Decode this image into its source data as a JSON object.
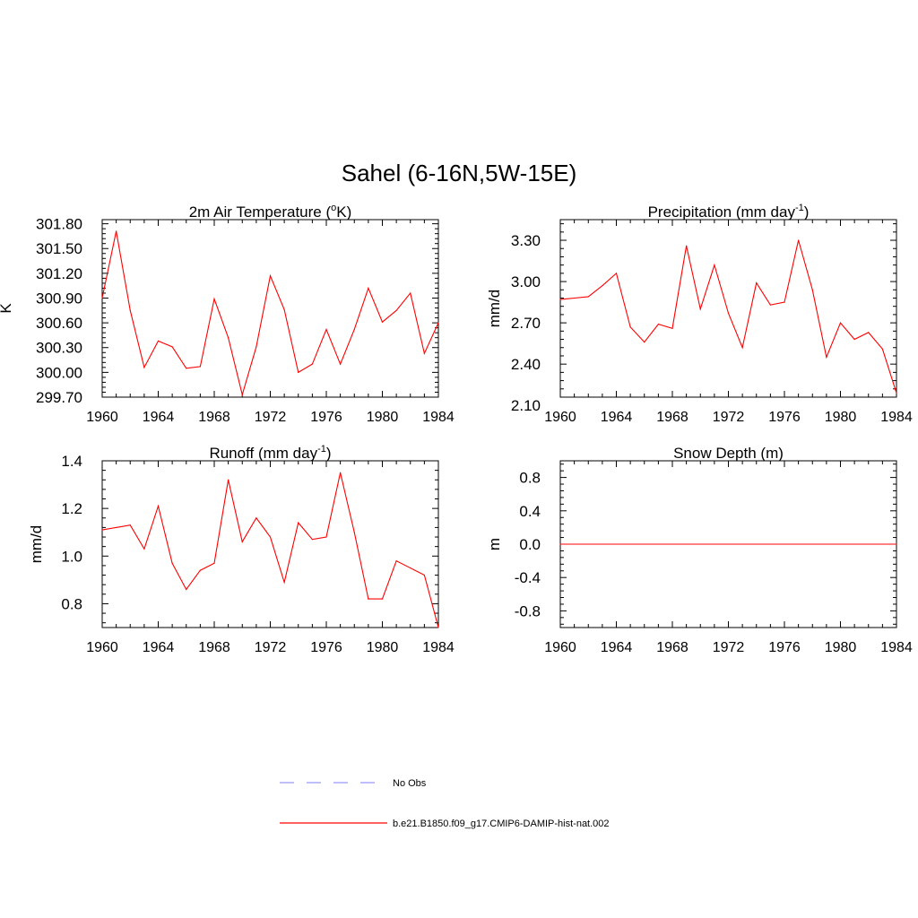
{
  "title": "Sahel (6-16N,5W-15E)",
  "chart_data": [
    {
      "type": "line",
      "title": "2m Air Temperature (",
      "title_sup": "o",
      "title_after": "K)",
      "ylabel": "K",
      "xlim": [
        1960,
        1984
      ],
      "ylim": [
        299.7,
        301.85
      ],
      "xticks": [
        "1960",
        "1964",
        "1968",
        "1972",
        "1976",
        "1980",
        "1984"
      ],
      "yticks": [
        "299.70",
        "300.00",
        "300.30",
        "300.60",
        "300.90",
        "301.20",
        "301.50",
        "301.80"
      ],
      "x": [
        1960,
        1961,
        1962,
        1963,
        1964,
        1965,
        1966,
        1967,
        1968,
        1969,
        1970,
        1971,
        1972,
        1973,
        1974,
        1975,
        1976,
        1977,
        1978,
        1979,
        1980,
        1981,
        1982,
        1983,
        1984
      ],
      "series": [
        {
          "values": [
            300.9,
            301.71,
            300.75,
            300.06,
            300.38,
            300.31,
            300.05,
            300.07,
            300.89,
            300.42,
            299.73,
            300.31,
            301.17,
            300.76,
            300.0,
            300.1,
            300.52,
            300.1,
            300.52,
            301.02,
            300.61,
            300.75,
            300.96,
            300.23,
            300.6
          ]
        }
      ]
    },
    {
      "type": "line",
      "title": "Precipitation (mm day",
      "title_sup": "-1",
      "title_after": ")",
      "ylabel": "mm/d",
      "xlim": [
        1960,
        1984
      ],
      "ylim": [
        2.16,
        3.45
      ],
      "xticks": [
        "1960",
        "1964",
        "1968",
        "1972",
        "1976",
        "1980",
        "1984"
      ],
      "yticks": [
        "2.10",
        "2.40",
        "2.70",
        "3.00",
        "3.30"
      ],
      "x": [
        1960,
        1961,
        1962,
        1963,
        1964,
        1965,
        1966,
        1967,
        1968,
        1969,
        1970,
        1971,
        1972,
        1973,
        1974,
        1975,
        1976,
        1977,
        1978,
        1979,
        1980,
        1981,
        1982,
        1983,
        1984
      ],
      "series": [
        {
          "values": [
            2.87,
            2.88,
            2.89,
            2.97,
            3.06,
            2.67,
            2.56,
            2.69,
            2.66,
            3.26,
            2.8,
            3.12,
            2.77,
            2.52,
            2.99,
            2.83,
            2.85,
            3.3,
            2.94,
            2.45,
            2.7,
            2.58,
            2.63,
            2.51,
            2.19
          ]
        }
      ]
    },
    {
      "type": "line",
      "title": "Runoff (mm day",
      "title_sup": "-1",
      "title_after": ")",
      "ylabel": "mm/d",
      "xlim": [
        1960,
        1984
      ],
      "ylim": [
        0.7,
        1.4
      ],
      "xticks": [
        "1960",
        "1964",
        "1968",
        "1972",
        "1976",
        "1980",
        "1984"
      ],
      "yticks": [
        "0.8",
        "1.0",
        "1.2",
        "1.4"
      ],
      "x": [
        1960,
        1961,
        1962,
        1963,
        1964,
        1965,
        1966,
        1967,
        1968,
        1969,
        1970,
        1971,
        1972,
        1973,
        1974,
        1975,
        1976,
        1977,
        1978,
        1979,
        1980,
        1981,
        1982,
        1983,
        1984
      ],
      "series": [
        {
          "values": [
            1.11,
            1.12,
            1.13,
            1.03,
            1.21,
            0.97,
            0.86,
            0.94,
            0.97,
            1.32,
            1.06,
            1.16,
            1.08,
            0.89,
            1.14,
            1.07,
            1.08,
            1.35,
            1.1,
            0.82,
            0.82,
            0.98,
            0.95,
            0.92,
            0.7
          ]
        }
      ]
    },
    {
      "type": "line",
      "title": "Snow Depth (m)",
      "title_sup": "",
      "title_after": "",
      "ylabel": "m",
      "xlim": [
        1960,
        1984
      ],
      "ylim": [
        -1.0,
        1.0
      ],
      "xticks": [
        "1960",
        "1964",
        "1968",
        "1972",
        "1976",
        "1980",
        "1984"
      ],
      "yticks": [
        "-0.8",
        "-0.4",
        "0.0",
        "0.4",
        "0.8"
      ],
      "x": [
        1960,
        1984
      ],
      "series": [
        {
          "values": [
            0.0,
            0.0
          ]
        }
      ]
    }
  ],
  "legend": [
    {
      "label": "No Obs",
      "color": "#9999ff",
      "style": "dashed"
    },
    {
      "label": "b.e21.B1850.f09_g17.CMIP6-DAMIP-hist-nat.002",
      "color": "#ff0000",
      "style": "solid"
    }
  ],
  "line_color": "#ff0000"
}
